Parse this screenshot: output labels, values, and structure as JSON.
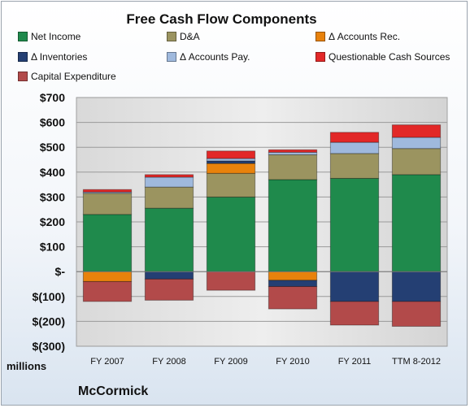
{
  "chart_data": {
    "type": "bar",
    "stacked": true,
    "title": "Free Cash Flow Components",
    "ylabel": "millions",
    "footer": "McCormick",
    "categories": [
      "FY 2007",
      "FY 2008",
      "FY 2009",
      "FY 2010",
      "FY 2011",
      "TTM 8-2012"
    ],
    "ylim": [
      -300,
      700
    ],
    "yticks": [
      {
        "value": 700,
        "label": "$700"
      },
      {
        "value": 600,
        "label": "$600"
      },
      {
        "value": 500,
        "label": "$500"
      },
      {
        "value": 400,
        "label": "$400"
      },
      {
        "value": 300,
        "label": "$300"
      },
      {
        "value": 200,
        "label": "$200"
      },
      {
        "value": 100,
        "label": "$100"
      },
      {
        "value": 0,
        "label": "$-"
      },
      {
        "value": -100,
        "label": "$(100)"
      },
      {
        "value": -200,
        "label": "$(200)"
      },
      {
        "value": -300,
        "label": "$(300)"
      }
    ],
    "grid": true,
    "legend_position": "top",
    "series": [
      {
        "name": "Net Income",
        "color": "#1f8a4c",
        "values": [
          230,
          255,
          300,
          370,
          375,
          390
        ]
      },
      {
        "name": "D&A",
        "color": "#9b9460",
        "values": [
          85,
          85,
          95,
          100,
          100,
          105
        ]
      },
      {
        "name": "Δ Accounts Rec.",
        "color": "#e8820c",
        "values": [
          -40,
          0,
          40,
          -35,
          0,
          0
        ]
      },
      {
        "name": "Δ Inventories",
        "color": "#243f73",
        "values": [
          0,
          -30,
          10,
          -25,
          -120,
          -120
        ]
      },
      {
        "name": "Δ Accounts Pay.",
        "color": "#9fb9dd",
        "values": [
          5,
          40,
          10,
          10,
          45,
          45
        ]
      },
      {
        "name": "Questionable Cash Sources",
        "color": "#e22828",
        "values": [
          10,
          10,
          30,
          10,
          40,
          50
        ]
      },
      {
        "name": "Capital Expenditure",
        "color": "#b24a4a",
        "values": [
          -80,
          -85,
          -75,
          -90,
          -95,
          -100
        ]
      }
    ]
  }
}
